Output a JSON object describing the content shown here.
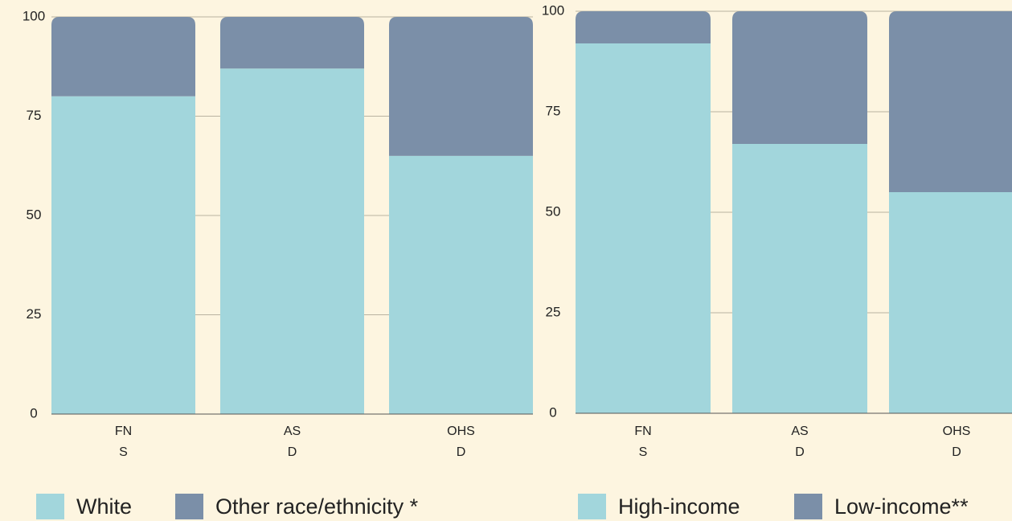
{
  "chart_data": [
    {
      "type": "bar",
      "stacked": true,
      "categories": [
        [
          "FN",
          "S"
        ],
        [
          "AS",
          "D"
        ],
        [
          "OHS",
          "D"
        ]
      ],
      "series": [
        {
          "name": "White",
          "color": "#a2d6dc",
          "values": [
            80,
            87,
            65
          ]
        },
        {
          "name": "Other race/ethnicity *",
          "color": "#7b8fa8",
          "values": [
            20,
            13,
            35
          ]
        }
      ],
      "ylim": [
        0,
        100
      ],
      "yticks": [
        0,
        25,
        50,
        75,
        100
      ],
      "grid": true
    },
    {
      "type": "bar",
      "stacked": true,
      "categories": [
        [
          "FN",
          "S"
        ],
        [
          "AS",
          "D"
        ],
        [
          "OHS",
          "D"
        ]
      ],
      "series": [
        {
          "name": "High-income",
          "color": "#a2d6dc",
          "values": [
            92,
            67,
            55
          ]
        },
        {
          "name": "Low-income**",
          "color": "#7b8fa8",
          "values": [
            8,
            33,
            45
          ]
        }
      ],
      "ylim": [
        0,
        100
      ],
      "yticks": [
        0,
        25,
        50,
        75,
        100
      ],
      "grid": true
    }
  ]
}
